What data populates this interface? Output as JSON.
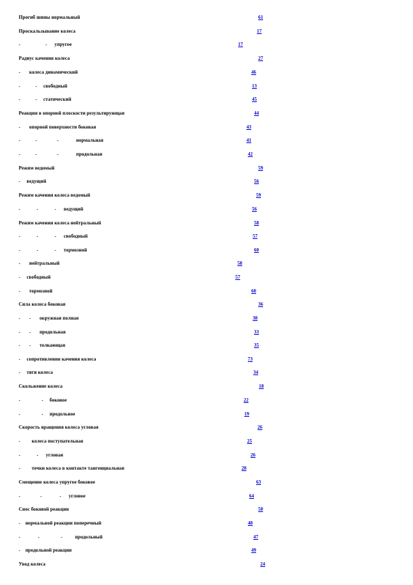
{
  "index": {
    "entries": [
      {
        "term": "Прогиб шины нормальный",
        "page": "61"
      },
      {
        "term": "Проскальзывание колеса",
        "page": "17"
      },
      {
        "term": "-                    -      упругое",
        "page": "17"
      },
      {
        "term": "Радиус качения колеса",
        "page": "27"
      },
      {
        "term": "-       колеса динамический",
        "page": "46"
      },
      {
        "term": "-            -     свободный",
        "page": "13"
      },
      {
        "term": "-            -     статический",
        "page": "45"
      },
      {
        "term": "Реакция в опорной плоскости результирующая",
        "page": "44"
      },
      {
        "term": "-       опорной поверхности боковая",
        "page": "43"
      },
      {
        "term": "-            -                -              нормальная",
        "page": "41"
      },
      {
        "term": "-            -                -              продольная",
        "page": "42"
      },
      {
        "term": "Режим ведомый",
        "page": "59"
      },
      {
        "term": "-     ведущий",
        "page": "56"
      },
      {
        "term": "Режим качения колеса ведомый",
        "page": "59"
      },
      {
        "term": "-             -             -      ведущий",
        "page": "56"
      },
      {
        "term": "Режим качения колеса нейтральный",
        "page": "58"
      },
      {
        "term": "-             -             -      свободный",
        "page": "57"
      },
      {
        "term": "-             -             -      тормозной",
        "page": "60"
      },
      {
        "term": "-       нейтральный",
        "page": "58"
      },
      {
        "term": "-     свободный",
        "page": "57"
      },
      {
        "term": "-       тормозной",
        "page": "60"
      },
      {
        "term": "Сила колеса боковая",
        "page": "36"
      },
      {
        "term": "-       -       окружная полная",
        "page": "38"
      },
      {
        "term": "-       -       продольная",
        "page": "33"
      },
      {
        "term": "-       -       толкающая",
        "page": "35"
      },
      {
        "term": "-     сопротивления качения колеса",
        "page": "73"
      },
      {
        "term": "-     тяги колеса",
        "page": "34"
      },
      {
        "term": "Скольжение колеса",
        "page": "18"
      },
      {
        "term": "-                 -     боковое",
        "page": "22"
      },
      {
        "term": "-                 -     продольное",
        "page": "19"
      },
      {
        "term": "Скорость вращения колеса угловая",
        "page": "26"
      },
      {
        "term": "-         колеса поступательная",
        "page": "25"
      },
      {
        "term": "-             -      угловая",
        "page": "26"
      },
      {
        "term": "-         точки колеса в контакте тангенциальная",
        "page": "28"
      },
      {
        "term": "Смещение колеса упругое боковое",
        "page": "63"
      },
      {
        "term": "-                -              -      угловое",
        "page": "64"
      },
      {
        "term": "Снос боковой реакции",
        "page": "50"
      },
      {
        "term": "-    нормальной реакции поперечный",
        "page": "48"
      },
      {
        "term": "-              -                 -          продольный",
        "page": "47"
      },
      {
        "term": "-    продольной реакции",
        "page": "49"
      },
      {
        "term": "Увод колеса",
        "page": "24"
      }
    ]
  }
}
